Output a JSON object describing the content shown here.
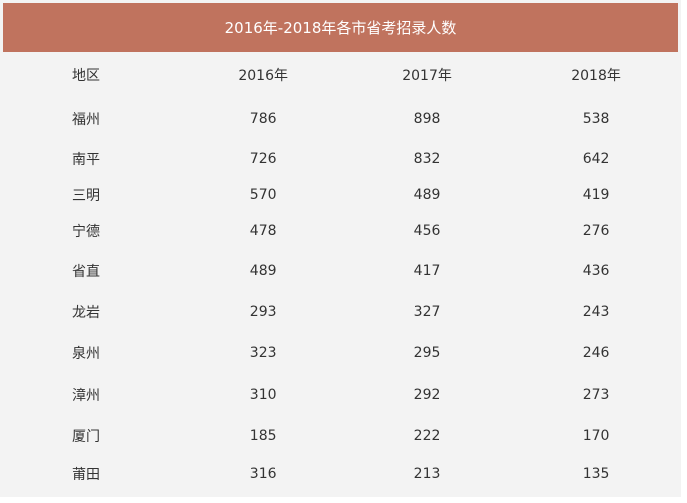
{
  "table": {
    "title": "2016年-2018年各市省考招录人数",
    "headers": [
      "地区",
      "2016年",
      "2017年",
      "2018年"
    ],
    "rows": [
      [
        "福州",
        "786",
        "898",
        "538"
      ],
      [
        "南平",
        "726",
        "832",
        "642"
      ],
      [
        "三明",
        "570",
        "489",
        "419"
      ],
      [
        "宁德",
        "478",
        "456",
        "276"
      ],
      [
        "省直",
        "489",
        "417",
        "436"
      ],
      [
        "龙岩",
        "293",
        "327",
        "243"
      ],
      [
        "泉州",
        "323",
        "295",
        "246"
      ],
      [
        "漳州",
        "310",
        "292",
        "273"
      ],
      [
        "厦门",
        "185",
        "222",
        "170"
      ],
      [
        "莆田",
        "316",
        "213",
        "135"
      ]
    ]
  },
  "colors": {
    "title_background": "#c0735e",
    "table_background": "#f3f3f3",
    "text": "#333333"
  }
}
